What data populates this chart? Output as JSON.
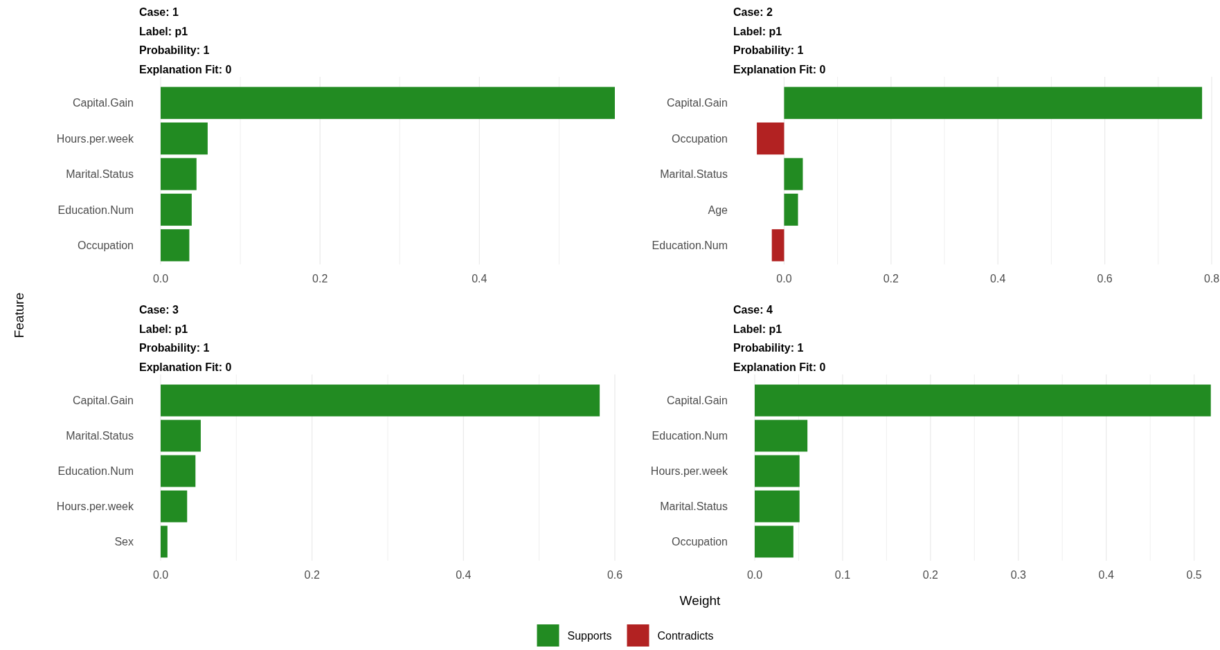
{
  "chart_data": [
    {
      "type": "bar",
      "orientation": "horizontal",
      "title": "Case: 1\nLabel: p1\nProbability: 1\nExplanation Fit: 0",
      "ylabel": "Feature",
      "categories": [
        "Capital.Gain",
        "Hours.per.week",
        "Marital.Status",
        "Education.Num",
        "Occupation"
      ],
      "series": [
        {
          "color": "#228b22",
          "values": [
            0.57,
            0.059,
            0.045,
            0.039,
            0.036
          ]
        }
      ],
      "xlim": [
        0,
        0.57
      ],
      "xticks": [
        {
          "value": 0,
          "label": "0.0"
        },
        {
          "value": 0.1,
          "label": null
        },
        {
          "value": 0.2,
          "label": "0.2"
        },
        {
          "value": 0.3,
          "label": null
        },
        {
          "value": 0.4,
          "label": "0.4"
        },
        {
          "value": 0.5,
          "label": null
        }
      ],
      "grid": "x"
    },
    {
      "type": "bar",
      "orientation": "horizontal",
      "title": "Case: 2\nLabel: p1\nProbability: 1\nExplanation Fit: 0",
      "categories": [
        "Capital.Gain",
        "Occupation",
        "Marital.Status",
        "Age",
        "Education.Num"
      ],
      "series": [
        {
          "name": "Supports",
          "color": "#228b22",
          "values": [
            0.782,
            null,
            0.035,
            0.026,
            null
          ]
        },
        {
          "name": "Contradicts",
          "color": "#b22222",
          "values": [
            null,
            -0.051,
            null,
            null,
            -0.023
          ]
        }
      ],
      "xlim": [
        -0.055,
        0.8
      ],
      "xticks": [
        {
          "value": 0,
          "label": "0.0"
        },
        {
          "value": 0.1,
          "label": null
        },
        {
          "value": 0.2,
          "label": "0.2"
        },
        {
          "value": 0.3,
          "label": null
        },
        {
          "value": 0.4,
          "label": "0.4"
        },
        {
          "value": 0.5,
          "label": null
        },
        {
          "value": 0.6,
          "label": "0.6"
        },
        {
          "value": 0.7,
          "label": null
        },
        {
          "value": 0.8,
          "label": "0.8"
        }
      ],
      "grid": "x",
      "legend": "bottom"
    },
    {
      "type": "bar",
      "orientation": "horizontal",
      "title": "Case: 3\nLabel: p1\nProbability: 1\nExplanation Fit: 0",
      "xlabel": "Weight",
      "categories": [
        "Capital.Gain",
        "Marital.Status",
        "Education.Num",
        "Hours.per.week",
        "Sex"
      ],
      "series": [
        {
          "color": "#228b22",
          "values": [
            0.58,
            0.053,
            0.046,
            0.035,
            0.009
          ]
        }
      ],
      "xlim": [
        0,
        0.6
      ],
      "xticks": [
        {
          "value": 0,
          "label": "0.0"
        },
        {
          "value": 0.1,
          "label": null
        },
        {
          "value": 0.2,
          "label": "0.2"
        },
        {
          "value": 0.3,
          "label": null
        },
        {
          "value": 0.4,
          "label": "0.4"
        },
        {
          "value": 0.5,
          "label": null
        },
        {
          "value": 0.6,
          "label": "0.6"
        }
      ],
      "grid": "x"
    },
    {
      "type": "bar",
      "orientation": "horizontal",
      "title": "Case: 4\nLabel: p1\nProbability: 1\nExplanation Fit: 0",
      "categories": [
        "Capital.Gain",
        "Education.Num",
        "Hours.per.week",
        "Marital.Status",
        "Occupation"
      ],
      "series": [
        {
          "color": "#228b22",
          "values": [
            0.519,
            0.06,
            0.051,
            0.051,
            0.044
          ]
        }
      ],
      "xlim": [
        0,
        0.52
      ],
      "xticks": [
        {
          "value": 0,
          "label": "0.0"
        },
        {
          "value": 0.05,
          "label": null
        },
        {
          "value": 0.1,
          "label": "0.1"
        },
        {
          "value": 0.15,
          "label": null
        },
        {
          "value": 0.2,
          "label": "0.2"
        },
        {
          "value": 0.25,
          "label": null
        },
        {
          "value": 0.3,
          "label": "0.3"
        },
        {
          "value": 0.35,
          "label": null
        },
        {
          "value": 0.4,
          "label": "0.4"
        },
        {
          "value": 0.45,
          "label": null
        },
        {
          "value": 0.5,
          "label": "0.5"
        }
      ],
      "grid": "x"
    }
  ]
}
